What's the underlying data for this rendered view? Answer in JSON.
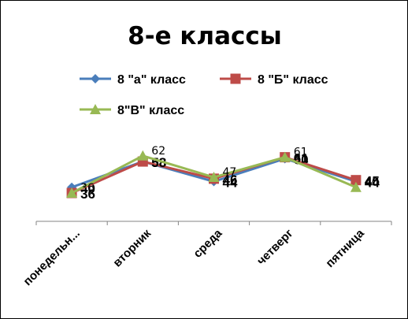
{
  "chart_data": {
    "type": "line",
    "title": "8-е классы",
    "categories": [
      "понедельн...",
      "вторник",
      "среда",
      "четверг",
      "пятница"
    ],
    "series": [
      {
        "name": "8 \"а\" класс",
        "values": [
          40,
          58,
          44,
          60,
          44
        ],
        "color": "#4a7ebb",
        "marker": "diamond",
        "label_style": "bold"
      },
      {
        "name": "8 \"Б\" класс",
        "values": [
          36,
          58,
          46,
          61,
          45
        ],
        "color": "#be4b48",
        "marker": "square",
        "label_style": "bold"
      },
      {
        "name": "8\"В\" класс",
        "values": [
          36,
          62,
          47,
          61,
          40
        ],
        "color": "#98b954",
        "marker": "triangle",
        "label_style": "light"
      }
    ],
    "legend_position": "top",
    "grid": false,
    "y_axis_visible": false
  }
}
